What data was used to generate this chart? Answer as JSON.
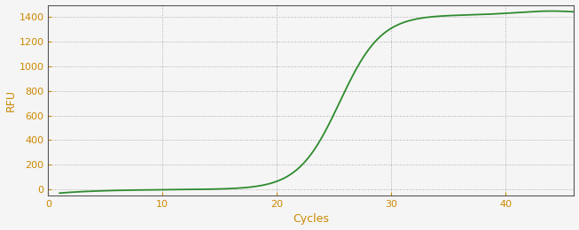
{
  "xlabel": "Cycles",
  "ylabel": "RFU",
  "xlim": [
    0,
    46
  ],
  "ylim": [
    -50,
    1500
  ],
  "xticks": [
    0,
    10,
    20,
    30,
    40
  ],
  "yticks": [
    0,
    200,
    400,
    600,
    800,
    1000,
    1200,
    1400
  ],
  "line_color": "#2e8b2e",
  "line_width": 1.3,
  "background_color": "#f5f5f5",
  "grid_color": "#999999",
  "grid_style": "dotted",
  "sigmoid_L": 1420,
  "sigmoid_k": 0.55,
  "sigmoid_x0": 25.5,
  "x_start": 1,
  "x_end": 46,
  "figsize": [
    6.53,
    2.6
  ],
  "dpi": 100,
  "tick_label_color": "#cc8800",
  "axis_label_color": "#cc8800",
  "spine_color": "#555555"
}
